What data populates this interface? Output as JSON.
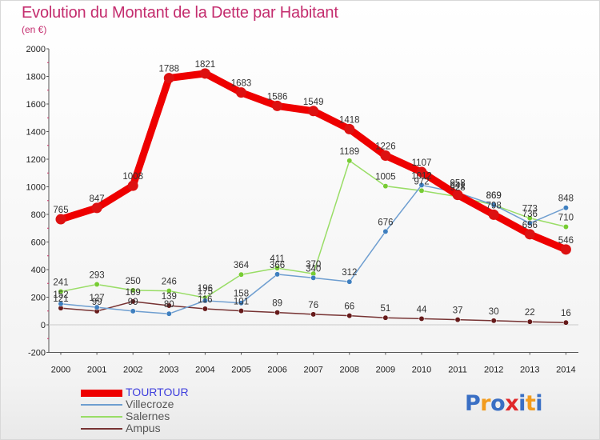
{
  "chart_data": {
    "type": "line",
    "title": "Evolution du Montant de la Dette par Habitant",
    "subtitle": "(en €)",
    "x": [
      "2000",
      "2001",
      "2002",
      "2003",
      "2004",
      "2005",
      "2006",
      "2007",
      "2008",
      "2009",
      "2010",
      "2011",
      "2012",
      "2013",
      "2014"
    ],
    "y_ticks": [
      "-200",
      "0",
      "200",
      "400",
      "600",
      "800",
      "1000",
      "1200",
      "1400",
      "1600",
      "1800",
      "2000"
    ],
    "ylim": [
      -200,
      2000
    ],
    "grid": false,
    "legend_position": "bottom-left",
    "series": [
      {
        "name": "TOURTOUR",
        "color": "#ee0000",
        "marker": "#dd1111",
        "legend_color": "#3f3fdd",
        "values": [
          765,
          847,
          1008,
          1788,
          1821,
          1683,
          1586,
          1549,
          1418,
          1226,
          1107,
          941,
          798,
          656,
          546
        ],
        "labels": [
          "765",
          "847",
          "1008",
          "1788",
          "1821",
          "1683",
          "1586",
          "1549",
          "1418",
          "1226",
          "1107",
          "941",
          "798",
          "656",
          "546"
        ]
      },
      {
        "name": "Villecroze",
        "color": "#6e9ed0",
        "marker": "#3f7fbf",
        "legend_color": "#555555",
        "values": [
          152,
          127,
          99,
          80,
          175,
          158,
          366,
          340,
          312,
          676,
          1012,
          958,
          869,
          736,
          848
        ],
        "labels": [
          "152",
          "127",
          "99",
          "80",
          "175",
          "158",
          "366",
          "340",
          "312",
          "676",
          "1012",
          "958",
          "869",
          "736",
          "848"
        ]
      },
      {
        "name": "Salernes",
        "color": "#99dd66",
        "marker": "#77cc33",
        "legend_color": "#555555",
        "values": [
          241,
          293,
          250,
          246,
          196,
          364,
          411,
          370,
          1189,
          1005,
          972,
          928,
          869,
          773,
          710
        ],
        "labels": [
          "241",
          "293",
          "250",
          "246",
          "196",
          "364",
          "411",
          "370",
          "1189",
          "1005",
          "972",
          "928",
          "869",
          "773",
          "710"
        ]
      },
      {
        "name": "Ampus",
        "color": "#773333",
        "marker": "#661a1a",
        "legend_color": "#555555",
        "values": [
          121,
          99,
          169,
          139,
          116,
          101,
          89,
          76,
          66,
          51,
          44,
          37,
          30,
          22,
          16
        ],
        "labels": [
          "121",
          "99",
          "169",
          "139",
          "116",
          "101",
          "89",
          "76",
          "66",
          "51",
          "44",
          "37",
          "30",
          "22",
          "16"
        ]
      }
    ]
  },
  "logo_text": [
    "P",
    "r",
    "o",
    "x",
    "i",
    "t",
    "i"
  ],
  "logo_colors": [
    "#3a6fc4",
    "#f29b1d",
    "#3a6fc4",
    "#e0282a",
    "#3a6fc4",
    "#f29b1d",
    "#3a6fc4"
  ]
}
